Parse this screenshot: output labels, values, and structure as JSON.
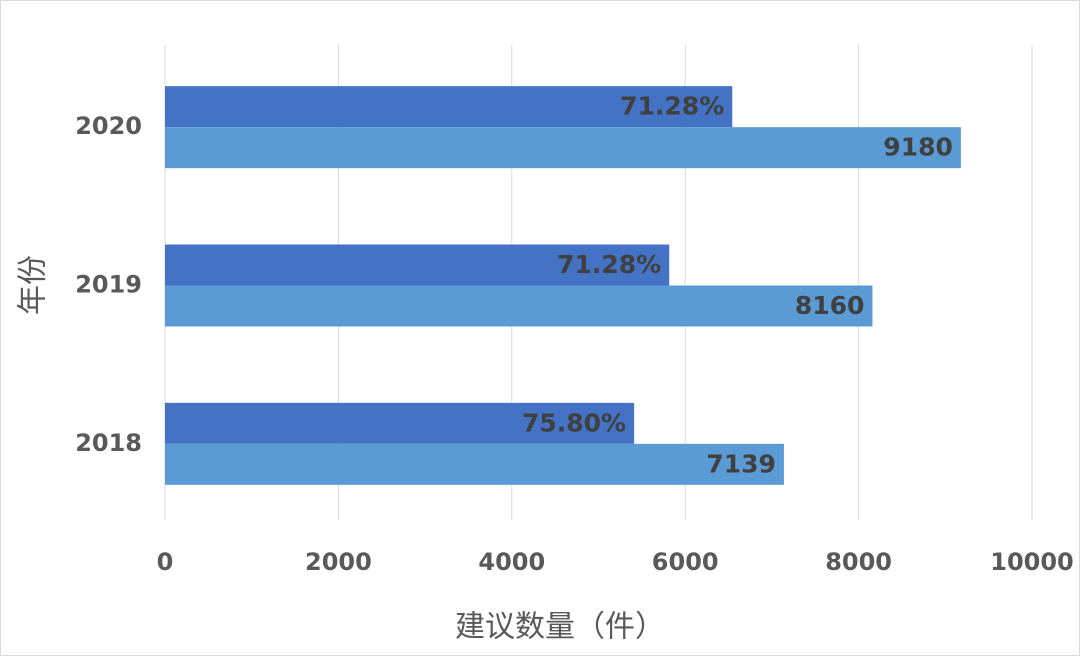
{
  "chart_data": {
    "type": "barh",
    "x_label": "建议数量（件）",
    "y_label": "年份",
    "categories": [
      "2018",
      "2019",
      "2020"
    ],
    "series": [
      {
        "color": "#4472c4",
        "values": [
          5411,
          5816,
          6543
        ],
        "rates": [
          75.8,
          71.28,
          71.28
        ],
        "rate_labels": [
          "75.80%",
          "71.28%",
          "71.28%"
        ]
      },
      {
        "color": "#5b9bd5",
        "values": [
          7139,
          8160,
          9180
        ]
      }
    ],
    "xlim": [
      0,
      10000
    ],
    "xticks": [
      0,
      2000,
      4000,
      6000,
      8000,
      10000
    ],
    "grid": true
  }
}
